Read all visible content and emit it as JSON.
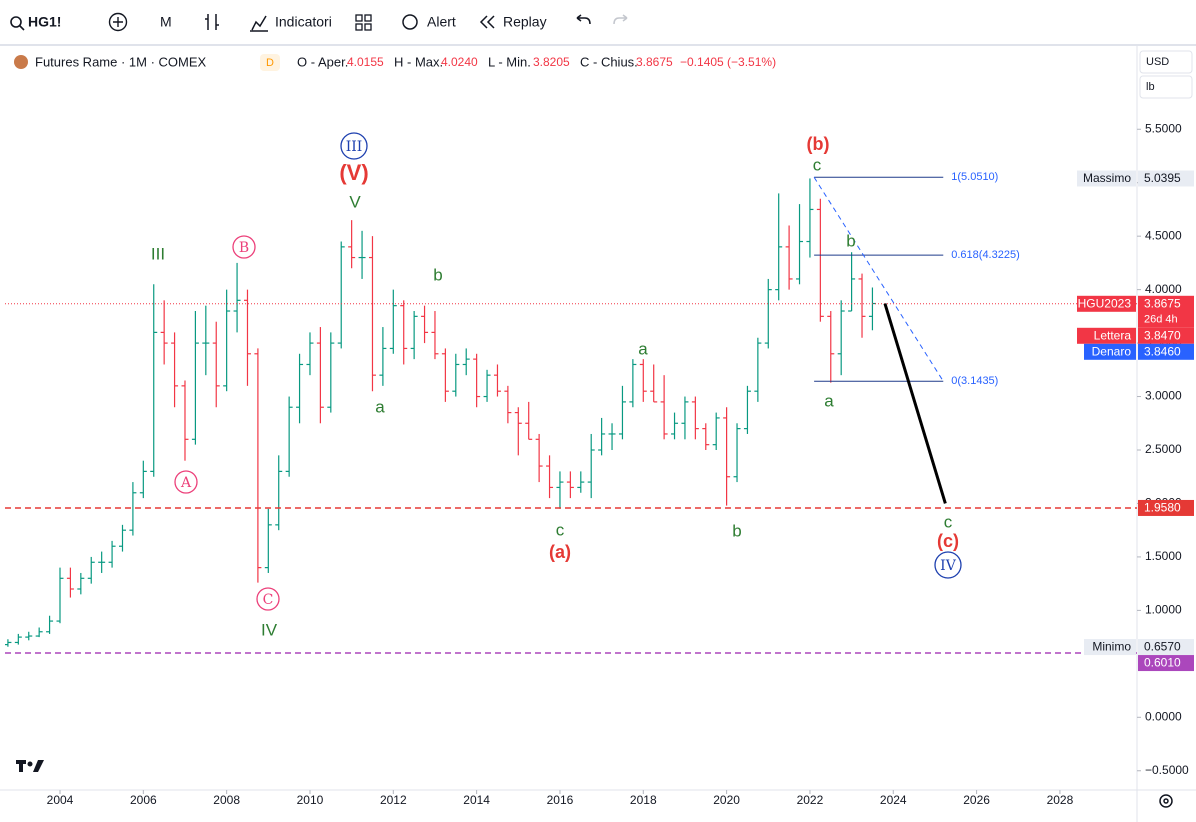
{
  "header": {
    "symbol": "HG1!",
    "interval": "M",
    "indicators": "Indicatori",
    "alert": "Alert",
    "replay": "Replay",
    "instrument": "Futures Rame · 1M · COMEX",
    "badge": "D",
    "open_label": "O - Aper.",
    "open": "4.0155",
    "high_label": "H - Max.",
    "high": "4.0240",
    "low_label": "L - Min.",
    "low": "3.8205",
    "close_label": "C - Chius.",
    "close": "3.8675",
    "change": "−0.1405 (−3.51%)",
    "currency": "USD",
    "unit": "lb"
  },
  "chart_data": {
    "type": "ohlc",
    "up_color": "#089981",
    "down_color": "#f23645",
    "grid": false,
    "xlim": [
      2002.68,
      2029.85
    ],
    "xticks": [
      2004,
      2006,
      2008,
      2010,
      2012,
      2014,
      2016,
      2018,
      2020,
      2022,
      2024,
      2026,
      2028
    ],
    "ylim": [
      -0.68,
      6.26
    ],
    "yticks": [
      {
        "value": 5.5,
        "label": "5.5000"
      },
      {
        "value": 5,
        "label": "5.0000"
      },
      {
        "value": 4.5,
        "label": "4.5000"
      },
      {
        "value": 4,
        "label": "4.0000"
      },
      {
        "value": 3.5,
        "label": "3.5000"
      },
      {
        "value": 3,
        "label": "3.0000"
      },
      {
        "value": 2.5,
        "label": "2.5000"
      },
      {
        "value": 2,
        "label": "2.0000"
      },
      {
        "value": 1.5,
        "label": "1.5000"
      },
      {
        "value": 1,
        "label": "1.0000"
      },
      {
        "value": 0,
        "label": "0.0000"
      },
      {
        "value": -0.5,
        "label": "−0.5000"
      }
    ],
    "x": [
      2002.75,
      2003,
      2003.25,
      2003.5,
      2003.75,
      2004,
      2004.25,
      2004.5,
      2004.75,
      2005,
      2005.25,
      2005.5,
      2005.75,
      2006,
      2006.25,
      2006.5,
      2006.75,
      2007,
      2007.25,
      2007.5,
      2007.75,
      2008,
      2008.25,
      2008.5,
      2008.75,
      2009,
      2009.25,
      2009.5,
      2009.75,
      2010,
      2010.25,
      2010.5,
      2010.75,
      2011,
      2011.25,
      2011.5,
      2011.75,
      2012,
      2012.25,
      2012.5,
      2012.75,
      2013,
      2013.25,
      2013.5,
      2013.75,
      2014,
      2014.25,
      2014.5,
      2014.75,
      2015,
      2015.25,
      2015.5,
      2015.75,
      2016,
      2016.25,
      2016.5,
      2016.75,
      2017,
      2017.25,
      2017.5,
      2017.75,
      2018,
      2018.25,
      2018.5,
      2018.75,
      2019,
      2019.25,
      2019.5,
      2019.75,
      2020,
      2020.25,
      2020.5,
      2020.75,
      2021,
      2021.25,
      2021.5,
      2021.75,
      2022,
      2022.25,
      2022.5,
      2022.75,
      2023,
      2023.25,
      2023.5
    ],
    "open": [
      0.68,
      0.7,
      0.75,
      0.76,
      0.8,
      0.9,
      1.3,
      1.2,
      1.3,
      1.45,
      1.45,
      1.6,
      1.75,
      2.1,
      2.3,
      3.6,
      3.5,
      3.1,
      2.6,
      3.5,
      3.5,
      3.1,
      3.8,
      3.9,
      3.4,
      1.4,
      1.8,
      2.3,
      2.9,
      3.3,
      3.5,
      2.9,
      3.5,
      4.4,
      4.3,
      4.3,
      3.2,
      3.45,
      3.85,
      3.45,
      3.75,
      3.6,
      3.4,
      3.05,
      3.3,
      3.35,
      3.0,
      3.2,
      3.05,
      2.85,
      2.75,
      2.6,
      2.35,
      2.15,
      2.2,
      2.15,
      2.2,
      2.5,
      2.65,
      2.65,
      2.95,
      3.3,
      3.05,
      2.95,
      2.65,
      2.75,
      2.95,
      2.7,
      2.55,
      2.8,
      2.25,
      2.7,
      3.05,
      3.5,
      4.0,
      4.4,
      4.1,
      4.45,
      4.75,
      3.75,
      3.4,
      3.8,
      4.1,
      3.75
    ],
    "high": [
      0.73,
      0.78,
      0.8,
      0.84,
      0.95,
      1.4,
      1.4,
      1.35,
      1.5,
      1.55,
      1.65,
      1.8,
      2.2,
      2.4,
      4.05,
      3.9,
      3.6,
      3.15,
      3.8,
      3.85,
      3.7,
      4.0,
      4.25,
      4.0,
      3.45,
      1.95,
      2.45,
      3.0,
      3.4,
      3.6,
      3.65,
      3.6,
      4.45,
      4.65,
      4.55,
      4.5,
      3.65,
      4.0,
      3.9,
      3.8,
      3.85,
      3.8,
      3.45,
      3.4,
      3.45,
      3.4,
      3.25,
      3.3,
      3.1,
      2.9,
      2.95,
      2.65,
      2.45,
      2.3,
      2.3,
      2.3,
      2.65,
      2.8,
      2.75,
      3.1,
      3.35,
      3.35,
      3.3,
      3.2,
      2.85,
      3.0,
      3.0,
      2.75,
      2.85,
      2.9,
      2.75,
      3.1,
      3.55,
      4.1,
      4.9,
      4.6,
      4.8,
      5.04,
      4.85,
      3.8,
      3.9,
      4.35,
      4.15,
      4.02
    ],
    "low": [
      0.66,
      0.68,
      0.72,
      0.75,
      0.78,
      0.88,
      1.12,
      1.15,
      1.25,
      1.35,
      1.4,
      1.55,
      1.7,
      2.05,
      2.25,
      3.3,
      2.9,
      2.4,
      2.55,
      3.2,
      2.9,
      3.05,
      3.6,
      3.1,
      1.26,
      1.35,
      1.75,
      2.25,
      2.75,
      3.2,
      2.75,
      2.85,
      3.45,
      4.2,
      4.1,
      3.05,
      3.1,
      3.4,
      3.3,
      3.35,
      3.5,
      3.35,
      2.95,
      3.0,
      3.2,
      2.9,
      2.95,
      3.0,
      2.75,
      2.45,
      2.6,
      2.2,
      2.05,
      1.95,
      2.05,
      2.1,
      2.05,
      2.45,
      2.5,
      2.6,
      2.9,
      2.95,
      2.95,
      2.6,
      2.6,
      2.6,
      2.6,
      2.5,
      2.5,
      1.98,
      2.2,
      2.65,
      2.95,
      3.45,
      3.9,
      4.0,
      4.05,
      4.3,
      3.7,
      3.13,
      3.2,
      3.8,
      3.55,
      3.62
    ],
    "close": [
      0.7,
      0.75,
      0.76,
      0.8,
      0.9,
      1.3,
      1.2,
      1.3,
      1.45,
      1.45,
      1.6,
      1.75,
      2.1,
      2.3,
      3.6,
      3.5,
      3.1,
      2.6,
      3.5,
      3.5,
      3.1,
      3.8,
      3.9,
      3.4,
      1.4,
      1.8,
      2.3,
      2.9,
      3.3,
      3.5,
      2.9,
      3.5,
      4.4,
      4.3,
      4.3,
      3.2,
      3.45,
      3.85,
      3.45,
      3.75,
      3.6,
      3.4,
      3.05,
      3.3,
      3.35,
      3.0,
      3.2,
      3.05,
      2.85,
      2.75,
      2.6,
      2.35,
      2.15,
      2.2,
      2.15,
      2.2,
      2.5,
      2.65,
      2.65,
      2.95,
      3.3,
      3.05,
      2.95,
      2.65,
      2.75,
      2.95,
      2.7,
      2.55,
      2.8,
      2.25,
      2.7,
      3.05,
      3.5,
      4.0,
      4.4,
      4.1,
      4.45,
      4.75,
      3.75,
      3.4,
      3.8,
      4.1,
      3.75,
      3.87
    ],
    "price_markers": [
      {
        "name": "Massimo",
        "value": 5.0395,
        "label": "5.0395",
        "color": "#e8ecf3",
        "text_color": "#131722"
      },
      {
        "name": "HGU2023",
        "value": 3.8675,
        "label": "3.8675",
        "countdown": "26d 4h",
        "color": "#f23645",
        "text_color": "#ffffff",
        "line": "dotted"
      },
      {
        "name": "Lettera",
        "value": 3.847,
        "label": "3.8470",
        "color": "#f23645",
        "text_color": "#ffffff"
      },
      {
        "name": "Denaro",
        "value": 3.846,
        "label": "3.8460",
        "color": "#2962ff",
        "text_color": "#ffffff"
      },
      {
        "value": 1.958,
        "label": "1.9580",
        "color": "#e53935",
        "text_color": "#ffffff",
        "line": "dashed"
      },
      {
        "name": "Minimo",
        "value": 0.657,
        "label": "0.6570",
        "color": "#e8ecf3",
        "text_color": "#131722"
      },
      {
        "value": 0.601,
        "label": "0.6010",
        "color": "#ab47bc",
        "text_color": "#ffffff",
        "line": "dashed"
      }
    ],
    "fib_levels": [
      {
        "label": "1(5.0510)",
        "value": 5.051
      },
      {
        "label": "0.618(4.3225)",
        "value": 4.3225
      },
      {
        "label": "0(3.1435)",
        "value": 3.1435
      }
    ],
    "fib_x": [
      2022.1,
      2025.2
    ],
    "trend_lines": [
      {
        "x": [
          2022.1,
          2025.2
        ],
        "y": [
          5.051,
          3.1435
        ],
        "color": "#2962ff",
        "style": "dashed"
      },
      {
        "x": [
          2023.8,
          2025.25
        ],
        "y": [
          3.87,
          2.0
        ],
        "color": "#000000",
        "style": "solid"
      }
    ],
    "annotations": [
      "III",
      "B",
      "A",
      "C",
      "IV",
      "III",
      "(V)",
      "V",
      "a",
      "b",
      "c",
      "(a)",
      "a",
      "b",
      "(b)",
      "c",
      "b",
      "a",
      "c",
      "(c)",
      "IV"
    ]
  }
}
